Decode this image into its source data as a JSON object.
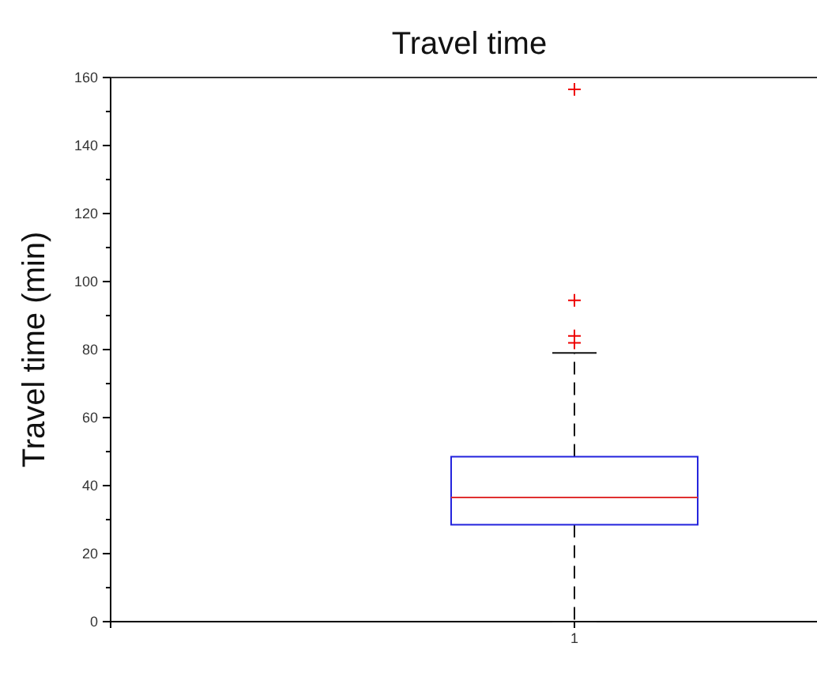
{
  "chart_data": {
    "type": "box",
    "title": "Travel time",
    "ylabel": "Travel time (min)",
    "categories": [
      "1"
    ],
    "boxes": [
      {
        "low": 0,
        "q1": 28.5,
        "median": 36.5,
        "q3": 48.5,
        "high": 79,
        "outliers": [
          156.5,
          94.5,
          84,
          82
        ]
      }
    ],
    "ylim": [
      0,
      160
    ],
    "yticks": [
      0,
      {
        "value": 10,
        "label": null
      },
      20,
      {
        "value": 30,
        "label": null
      },
      40,
      {
        "value": 50,
        "label": null
      },
      60,
      {
        "value": 70,
        "label": null
      },
      80,
      {
        "value": 90,
        "label": null
      },
      100,
      {
        "value": 110,
        "label": null
      },
      120,
      {
        "value": 130,
        "label": null
      },
      140,
      {
        "value": 150,
        "label": null
      },
      160
    ],
    "grid": false,
    "marker": "cross"
  }
}
